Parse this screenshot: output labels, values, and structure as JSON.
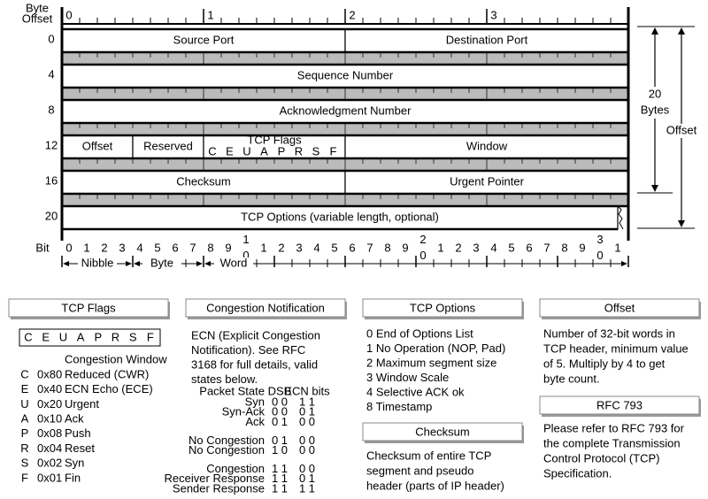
{
  "byte_offset_label": [
    "Byte",
    "Offset"
  ],
  "byte_numbers": [
    "0",
    "1",
    "2",
    "3"
  ],
  "row_offsets": [
    "0",
    "4",
    "8",
    "12",
    "16",
    "20"
  ],
  "rows": [
    [
      {
        "label": "Source Port"
      },
      {
        "label": "Destination Port"
      }
    ],
    [
      {
        "label": "Sequence Number"
      }
    ],
    [
      {
        "label": "Acknowledgment Number"
      }
    ],
    [
      {
        "label": "Offset"
      },
      {
        "label": "Reserved"
      },
      {
        "label": "TCP Flags",
        "flags": [
          "C",
          "E",
          "U",
          "A",
          "P",
          "R",
          "S",
          "F"
        ]
      },
      {
        "label": "Window"
      }
    ],
    [
      {
        "label": "Checksum"
      },
      {
        "label": "Urgent Pointer"
      }
    ],
    [
      {
        "label": "TCP Options (variable length, optional)"
      }
    ]
  ],
  "size_annotation": [
    "20",
    "Bytes"
  ],
  "offset_annotation": "Offset",
  "bit_label": "Bit",
  "bit_numbers": [
    "0",
    "1",
    "2",
    "3",
    "4",
    "5",
    "6",
    "7",
    "8",
    "9",
    "10",
    "1",
    "2",
    "3",
    "4",
    "5",
    "6",
    "7",
    "8",
    "9",
    "20",
    "1",
    "2",
    "3",
    "4",
    "5",
    "6",
    "7",
    "8",
    "9",
    "30",
    "1"
  ],
  "scale_labels": [
    "Nibble",
    "Byte",
    "Word"
  ],
  "panels": {
    "tcp_flags": {
      "title": "TCP Flags",
      "flags": [
        "C",
        "E",
        "U",
        "A",
        "P",
        "R",
        "S",
        "F"
      ],
      "subtitle": "Congestion Window",
      "rows": [
        [
          "C",
          "0x80",
          "Reduced (CWR)"
        ],
        [
          "E",
          "0x40",
          "ECN Echo (ECE)"
        ],
        [
          "U",
          "0x20",
          "Urgent"
        ],
        [
          "A",
          "0x10",
          "Ack"
        ],
        [
          "P",
          "0x08",
          "Push"
        ],
        [
          "R",
          "0x04",
          "Reset"
        ],
        [
          "S",
          "0x02",
          "Syn"
        ],
        [
          "F",
          "0x01",
          "Fin"
        ]
      ]
    },
    "congestion_notification": {
      "title": "Congestion Notification",
      "lines": [
        "ECN (Explicit Congestion",
        "Notification).  See RFC",
        "3168 for full details, valid",
        "states below."
      ],
      "table": {
        "header": [
          "Packet State",
          "DSB",
          "ECN bits"
        ],
        "groups": [
          [
            [
              "Syn",
              "0 0",
              "1 1"
            ],
            [
              "Syn-Ack",
              "0 0",
              "0 1"
            ],
            [
              "Ack",
              "0 1",
              "0 0"
            ]
          ],
          [
            [
              "No Congestion",
              "0 1",
              "0 0"
            ],
            [
              "No Congestion",
              "1 0",
              "0 0"
            ]
          ],
          [
            [
              "Congestion",
              "1 1",
              "0 0"
            ],
            [
              "Receiver Response",
              "1 1",
              "0 1"
            ],
            [
              "Sender Response",
              "1 1",
              "1 1"
            ]
          ]
        ]
      }
    },
    "tcp_options": {
      "title": "TCP Options",
      "lines": [
        "0 End of Options List",
        "1 No Operation (NOP, Pad)",
        "2 Maximum segment size",
        "3 Window Scale",
        "4 Selective ACK ok",
        "8 Timestamp"
      ]
    },
    "checksum": {
      "title": "Checksum",
      "lines": [
        "Checksum of entire TCP",
        "segment and pseudo",
        "header (parts of IP header)"
      ]
    },
    "offset": {
      "title": "Offset",
      "lines": [
        "Number of 32-bit words in",
        "TCP header, minimum value",
        "of 5.  Multiply by 4 to get",
        "byte count."
      ]
    },
    "rfc": {
      "title": "RFC 793",
      "lines": [
        "Please refer to RFC 793 for",
        "the complete Transmission",
        "Control Protocol (TCP)",
        "Specification."
      ]
    }
  }
}
